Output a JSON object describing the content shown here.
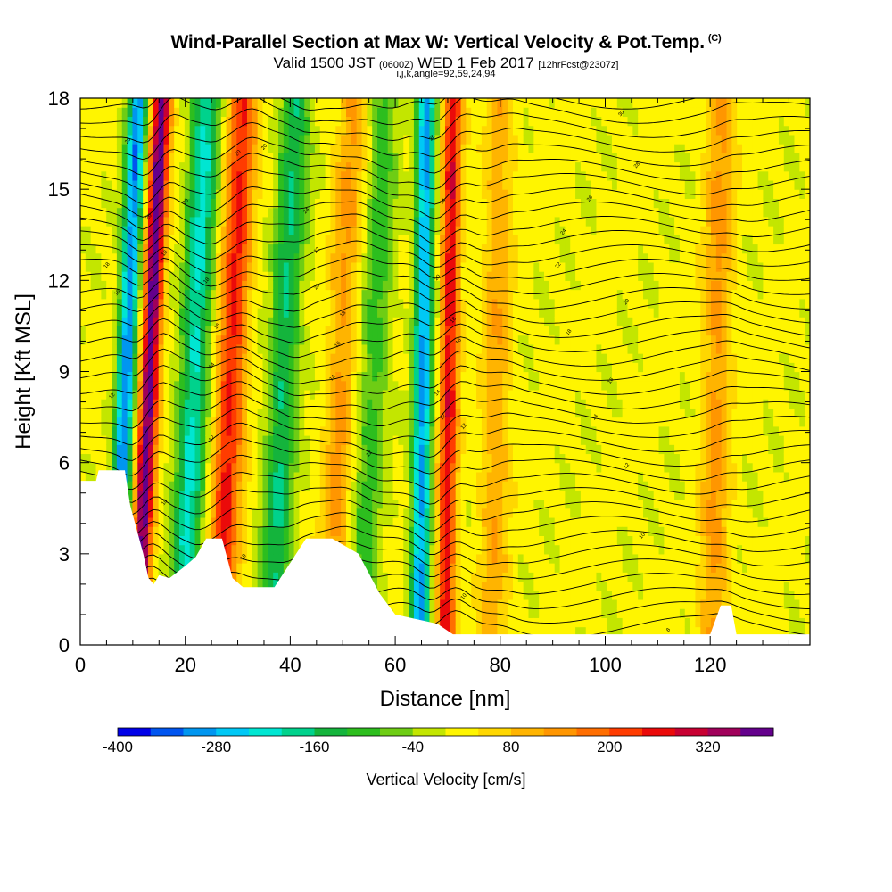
{
  "header": {
    "title": "Wind-Parallel Section at Max W: Vertical Velocity & Pot.Temp.",
    "copyright": "(C)",
    "valid_prefix": "Valid 1500 JST",
    "valid_zulu": "(0600Z)",
    "valid_date": "WED 1 Feb 2017",
    "forecast_info": "[12hrFcst@2307z]",
    "indices": "i,j,k,angle=92,59,24,94"
  },
  "chart_data": {
    "type": "heatmap",
    "xlabel": "Distance [nm]",
    "ylabel": "Height [Kft MSL]",
    "xlim": [
      0,
      139
    ],
    "ylim": [
      0,
      18
    ],
    "x_ticks": [
      0,
      20,
      40,
      60,
      80,
      100,
      120
    ],
    "y_ticks": [
      0,
      3,
      6,
      9,
      12,
      15,
      18
    ],
    "colorbar": {
      "label": "Vertical Velocity [cm/s]",
      "tick_labels": [
        "-400",
        "-280",
        "-160",
        "-40",
        "80",
        "200",
        "320"
      ],
      "tick_values": [
        -400,
        -280,
        -160,
        -40,
        80,
        200,
        320
      ],
      "bins": [
        -400,
        -360,
        -320,
        -280,
        -240,
        -200,
        -160,
        -120,
        -80,
        -40,
        0,
        40,
        80,
        120,
        160,
        200,
        240,
        280,
        320,
        360,
        400
      ],
      "colors": [
        "#0000e8",
        "#0055f0",
        "#0096f0",
        "#00c8f5",
        "#00e6d2",
        "#00d28c",
        "#14b43c",
        "#2dbe1e",
        "#6ecd14",
        "#c3e600",
        "#fff500",
        "#ffd700",
        "#ffb400",
        "#ff9600",
        "#ff6e00",
        "#ff3c00",
        "#eb0a0a",
        "#c80032",
        "#a0005a",
        "#64008c"
      ]
    },
    "features": [
      {
        "kind": "updraft",
        "x_center": 15.5,
        "peak_w": 380
      },
      {
        "kind": "downdraft",
        "x_center": 11,
        "peak_w": -320
      },
      {
        "kind": "downdraft",
        "x_center": 24,
        "peak_w": -220
      },
      {
        "kind": "updraft",
        "x_center": 31,
        "peak_w": 240
      },
      {
        "kind": "downdraft",
        "x_center": 41,
        "peak_w": -170
      },
      {
        "kind": "updraft",
        "x_center": 52,
        "peak_w": 120
      },
      {
        "kind": "downdraft",
        "x_center": 58,
        "peak_w": -110
      },
      {
        "kind": "downdraft",
        "x_center": 66,
        "peak_w": -300
      },
      {
        "kind": "updraft",
        "x_center": 71,
        "peak_w": 260
      },
      {
        "kind": "updraft",
        "x_center": 80,
        "peak_w": 100
      },
      {
        "kind": "updraft",
        "x_center": 122,
        "peak_w": 120
      }
    ],
    "terrain": [
      [
        0,
        5.4
      ],
      [
        3,
        5.4
      ],
      [
        3.5,
        5.75
      ],
      [
        8.5,
        5.75
      ],
      [
        9.5,
        4.6
      ],
      [
        12,
        3.0
      ],
      [
        13,
        2.2
      ],
      [
        14,
        2.0
      ],
      [
        15,
        2.3
      ],
      [
        17,
        2.2
      ],
      [
        20,
        2.6
      ],
      [
        22,
        2.9
      ],
      [
        24,
        3.5
      ],
      [
        27,
        3.5
      ],
      [
        29,
        2.2
      ],
      [
        31,
        1.9
      ],
      [
        37,
        1.9
      ],
      [
        40,
        2.7
      ],
      [
        43,
        3.5
      ],
      [
        48,
        3.5
      ],
      [
        53,
        3.0
      ],
      [
        57,
        1.7
      ],
      [
        60,
        1.0
      ],
      [
        68,
        0.7
      ],
      [
        71,
        0.35
      ],
      [
        120,
        0.35
      ],
      [
        122,
        1.3
      ],
      [
        124,
        1.3
      ],
      [
        125,
        0.35
      ],
      [
        139,
        0.35
      ]
    ],
    "contour_labels": [
      {
        "x": 9,
        "y": 16.6,
        "text": "20"
      },
      {
        "x": 5,
        "y": 12.5,
        "text": "18"
      },
      {
        "x": 7,
        "y": 11.6,
        "text": "16"
      },
      {
        "x": 6,
        "y": 8.2,
        "text": "12"
      },
      {
        "x": 13,
        "y": 14.1,
        "text": "20"
      },
      {
        "x": 16,
        "y": 12.9,
        "text": "18"
      },
      {
        "x": 20,
        "y": 14.6,
        "text": "20"
      },
      {
        "x": 30,
        "y": 16.2,
        "text": "20"
      },
      {
        "x": 35,
        "y": 16.4,
        "text": "20"
      },
      {
        "x": 24,
        "y": 12.0,
        "text": "18"
      },
      {
        "x": 26,
        "y": 10.5,
        "text": "16"
      },
      {
        "x": 25,
        "y": 9.2,
        "text": "14"
      },
      {
        "x": 25,
        "y": 6.8,
        "text": "12"
      },
      {
        "x": 16,
        "y": 4.7,
        "text": "10"
      },
      {
        "x": 31,
        "y": 2.9,
        "text": "10"
      },
      {
        "x": 43,
        "y": 14.3,
        "text": "24"
      },
      {
        "x": 45,
        "y": 13.0,
        "text": "22"
      },
      {
        "x": 45,
        "y": 11.8,
        "text": "20"
      },
      {
        "x": 50,
        "y": 10.9,
        "text": "18"
      },
      {
        "x": 49,
        "y": 9.9,
        "text": "16"
      },
      {
        "x": 48,
        "y": 8.8,
        "text": "14"
      },
      {
        "x": 55,
        "y": 6.3,
        "text": "12"
      },
      {
        "x": 67,
        "y": 16.7,
        "text": "26"
      },
      {
        "x": 69,
        "y": 14.6,
        "text": "24"
      },
      {
        "x": 68,
        "y": 12.1,
        "text": "20"
      },
      {
        "x": 71,
        "y": 10.7,
        "text": "18"
      },
      {
        "x": 72,
        "y": 10.0,
        "text": "16"
      },
      {
        "x": 68,
        "y": 8.3,
        "text": "14"
      },
      {
        "x": 69,
        "y": 7.5,
        "text": "12"
      },
      {
        "x": 73,
        "y": 7.2,
        "text": "12"
      },
      {
        "x": 73,
        "y": 1.6,
        "text": "10"
      },
      {
        "x": 103,
        "y": 17.5,
        "text": "30"
      },
      {
        "x": 106,
        "y": 15.8,
        "text": "28"
      },
      {
        "x": 97,
        "y": 14.7,
        "text": "26"
      },
      {
        "x": 92,
        "y": 13.6,
        "text": "24"
      },
      {
        "x": 91,
        "y": 12.5,
        "text": "22"
      },
      {
        "x": 104,
        "y": 11.3,
        "text": "20"
      },
      {
        "x": 93,
        "y": 10.3,
        "text": "18"
      },
      {
        "x": 101,
        "y": 8.7,
        "text": "16"
      },
      {
        "x": 98,
        "y": 7.5,
        "text": "14"
      },
      {
        "x": 104,
        "y": 5.9,
        "text": "12"
      },
      {
        "x": 107,
        "y": 3.6,
        "text": "10"
      },
      {
        "x": 112,
        "y": 0.5,
        "text": "8"
      }
    ]
  }
}
